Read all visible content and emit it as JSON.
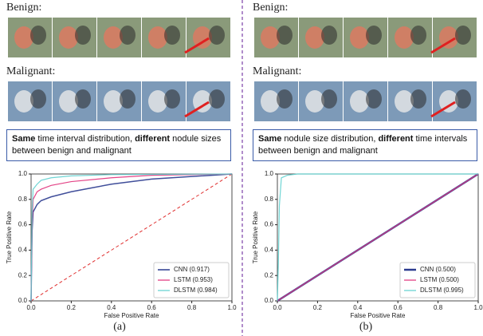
{
  "panels": [
    {
      "benign_label": "Benign:",
      "malignant_label": "Malignant:",
      "caption": [
        {
          "text": "Same",
          "bold": true
        },
        {
          "text": " time interval distribution, ",
          "bold": false
        },
        {
          "text": "different",
          "bold": true
        },
        {
          "text": " nodule sizes between benign and malignant",
          "bold": false
        }
      ],
      "label": "(a)"
    },
    {
      "benign_label": "Benign:",
      "malignant_label": "Malignant:",
      "caption": [
        {
          "text": "Same",
          "bold": true
        },
        {
          "text": " nodule size distribution, ",
          "bold": false
        },
        {
          "text": "different",
          "bold": true
        },
        {
          "text": " time intervals between benign and malignant",
          "bold": false
        }
      ],
      "label": "(b)"
    }
  ],
  "chart_data": [
    {
      "type": "line",
      "x_label": "False Positive Rate",
      "y_label": "True Positive Rate",
      "xlim": [
        0,
        1
      ],
      "ylim": [
        0,
        1
      ],
      "xticks": [
        {
          "value": 0,
          "label": "0.0"
        },
        {
          "value": 0.2,
          "label": "0.2"
        },
        {
          "value": 0.4,
          "label": "0.4"
        },
        {
          "value": 0.6,
          "label": "0.6"
        },
        {
          "value": 0.8,
          "label": "0.8"
        },
        {
          "value": 1,
          "label": "1.0"
        }
      ],
      "yticks": [
        {
          "value": 0,
          "label": "0.0"
        },
        {
          "value": 0.2,
          "label": "0.2"
        },
        {
          "value": 0.4,
          "label": "0.4"
        },
        {
          "value": 0.6,
          "label": "0.6"
        },
        {
          "value": 0.8,
          "label": "0.8"
        },
        {
          "value": 1,
          "label": "1.0"
        }
      ],
      "legend": "lower right",
      "reference_line": {
        "x": [
          0,
          1
        ],
        "y": [
          0,
          1
        ],
        "color": "#e03030",
        "dashed": true
      },
      "series": [
        {
          "name": "CNN (0.917)",
          "color": "#2b3b8f",
          "width": 1.5,
          "x": [
            0,
            0.005,
            0.01,
            0.03,
            0.05,
            0.1,
            0.2,
            0.3,
            0.4,
            0.6,
            0.8,
            1
          ],
          "values": [
            0,
            0.55,
            0.7,
            0.76,
            0.79,
            0.82,
            0.86,
            0.89,
            0.92,
            0.96,
            0.98,
            1
          ]
        },
        {
          "name": "LSTM (0.953)",
          "color": "#e0307a",
          "width": 1.2,
          "x": [
            0,
            0.005,
            0.01,
            0.03,
            0.05,
            0.1,
            0.2,
            0.4,
            0.6,
            1
          ],
          "values": [
            0,
            0.6,
            0.8,
            0.86,
            0.88,
            0.91,
            0.94,
            0.97,
            0.99,
            1
          ]
        },
        {
          "name": "DLSTM (0.984)",
          "color": "#5fd0cf",
          "width": 1.2,
          "x": [
            0,
            0.005,
            0.01,
            0.03,
            0.05,
            0.1,
            0.2,
            0.4,
            1
          ],
          "values": [
            0,
            0.7,
            0.88,
            0.92,
            0.95,
            0.97,
            0.985,
            0.995,
            1
          ]
        }
      ]
    },
    {
      "type": "line",
      "x_label": "False Positive Rate",
      "y_label": "True Positive Rate",
      "xlim": [
        0,
        1
      ],
      "ylim": [
        0,
        1
      ],
      "xticks": [
        {
          "value": 0,
          "label": "0.0"
        },
        {
          "value": 0.2,
          "label": "0.2"
        },
        {
          "value": 0.4,
          "label": "0.4"
        },
        {
          "value": 0.6,
          "label": "0.6"
        },
        {
          "value": 0.8,
          "label": "0.8"
        },
        {
          "value": 1,
          "label": "1.0"
        }
      ],
      "yticks": [
        {
          "value": 0,
          "label": "0.0"
        },
        {
          "value": 0.2,
          "label": "0.2"
        },
        {
          "value": 0.4,
          "label": "0.4"
        },
        {
          "value": 0.6,
          "label": "0.6"
        },
        {
          "value": 0.8,
          "label": "0.8"
        },
        {
          "value": 1,
          "label": "1.0"
        }
      ],
      "legend": "lower right",
      "series": [
        {
          "name": "CNN (0.500)",
          "color": "#2b3b8f",
          "width": 2.5,
          "x": [
            0,
            1
          ],
          "values": [
            0,
            1
          ]
        },
        {
          "name": "LSTM (0.500)",
          "color": "#e0307a",
          "width": 1.2,
          "x": [
            0,
            1
          ],
          "values": [
            0,
            1
          ]
        },
        {
          "name": "DLSTM (0.995)",
          "color": "#5fd0cf",
          "width": 1.2,
          "x": [
            0,
            0.005,
            0.01,
            0.02,
            0.05,
            0.1,
            1
          ],
          "values": [
            0,
            0.3,
            0.75,
            0.97,
            0.99,
            1,
            1
          ]
        }
      ]
    }
  ]
}
